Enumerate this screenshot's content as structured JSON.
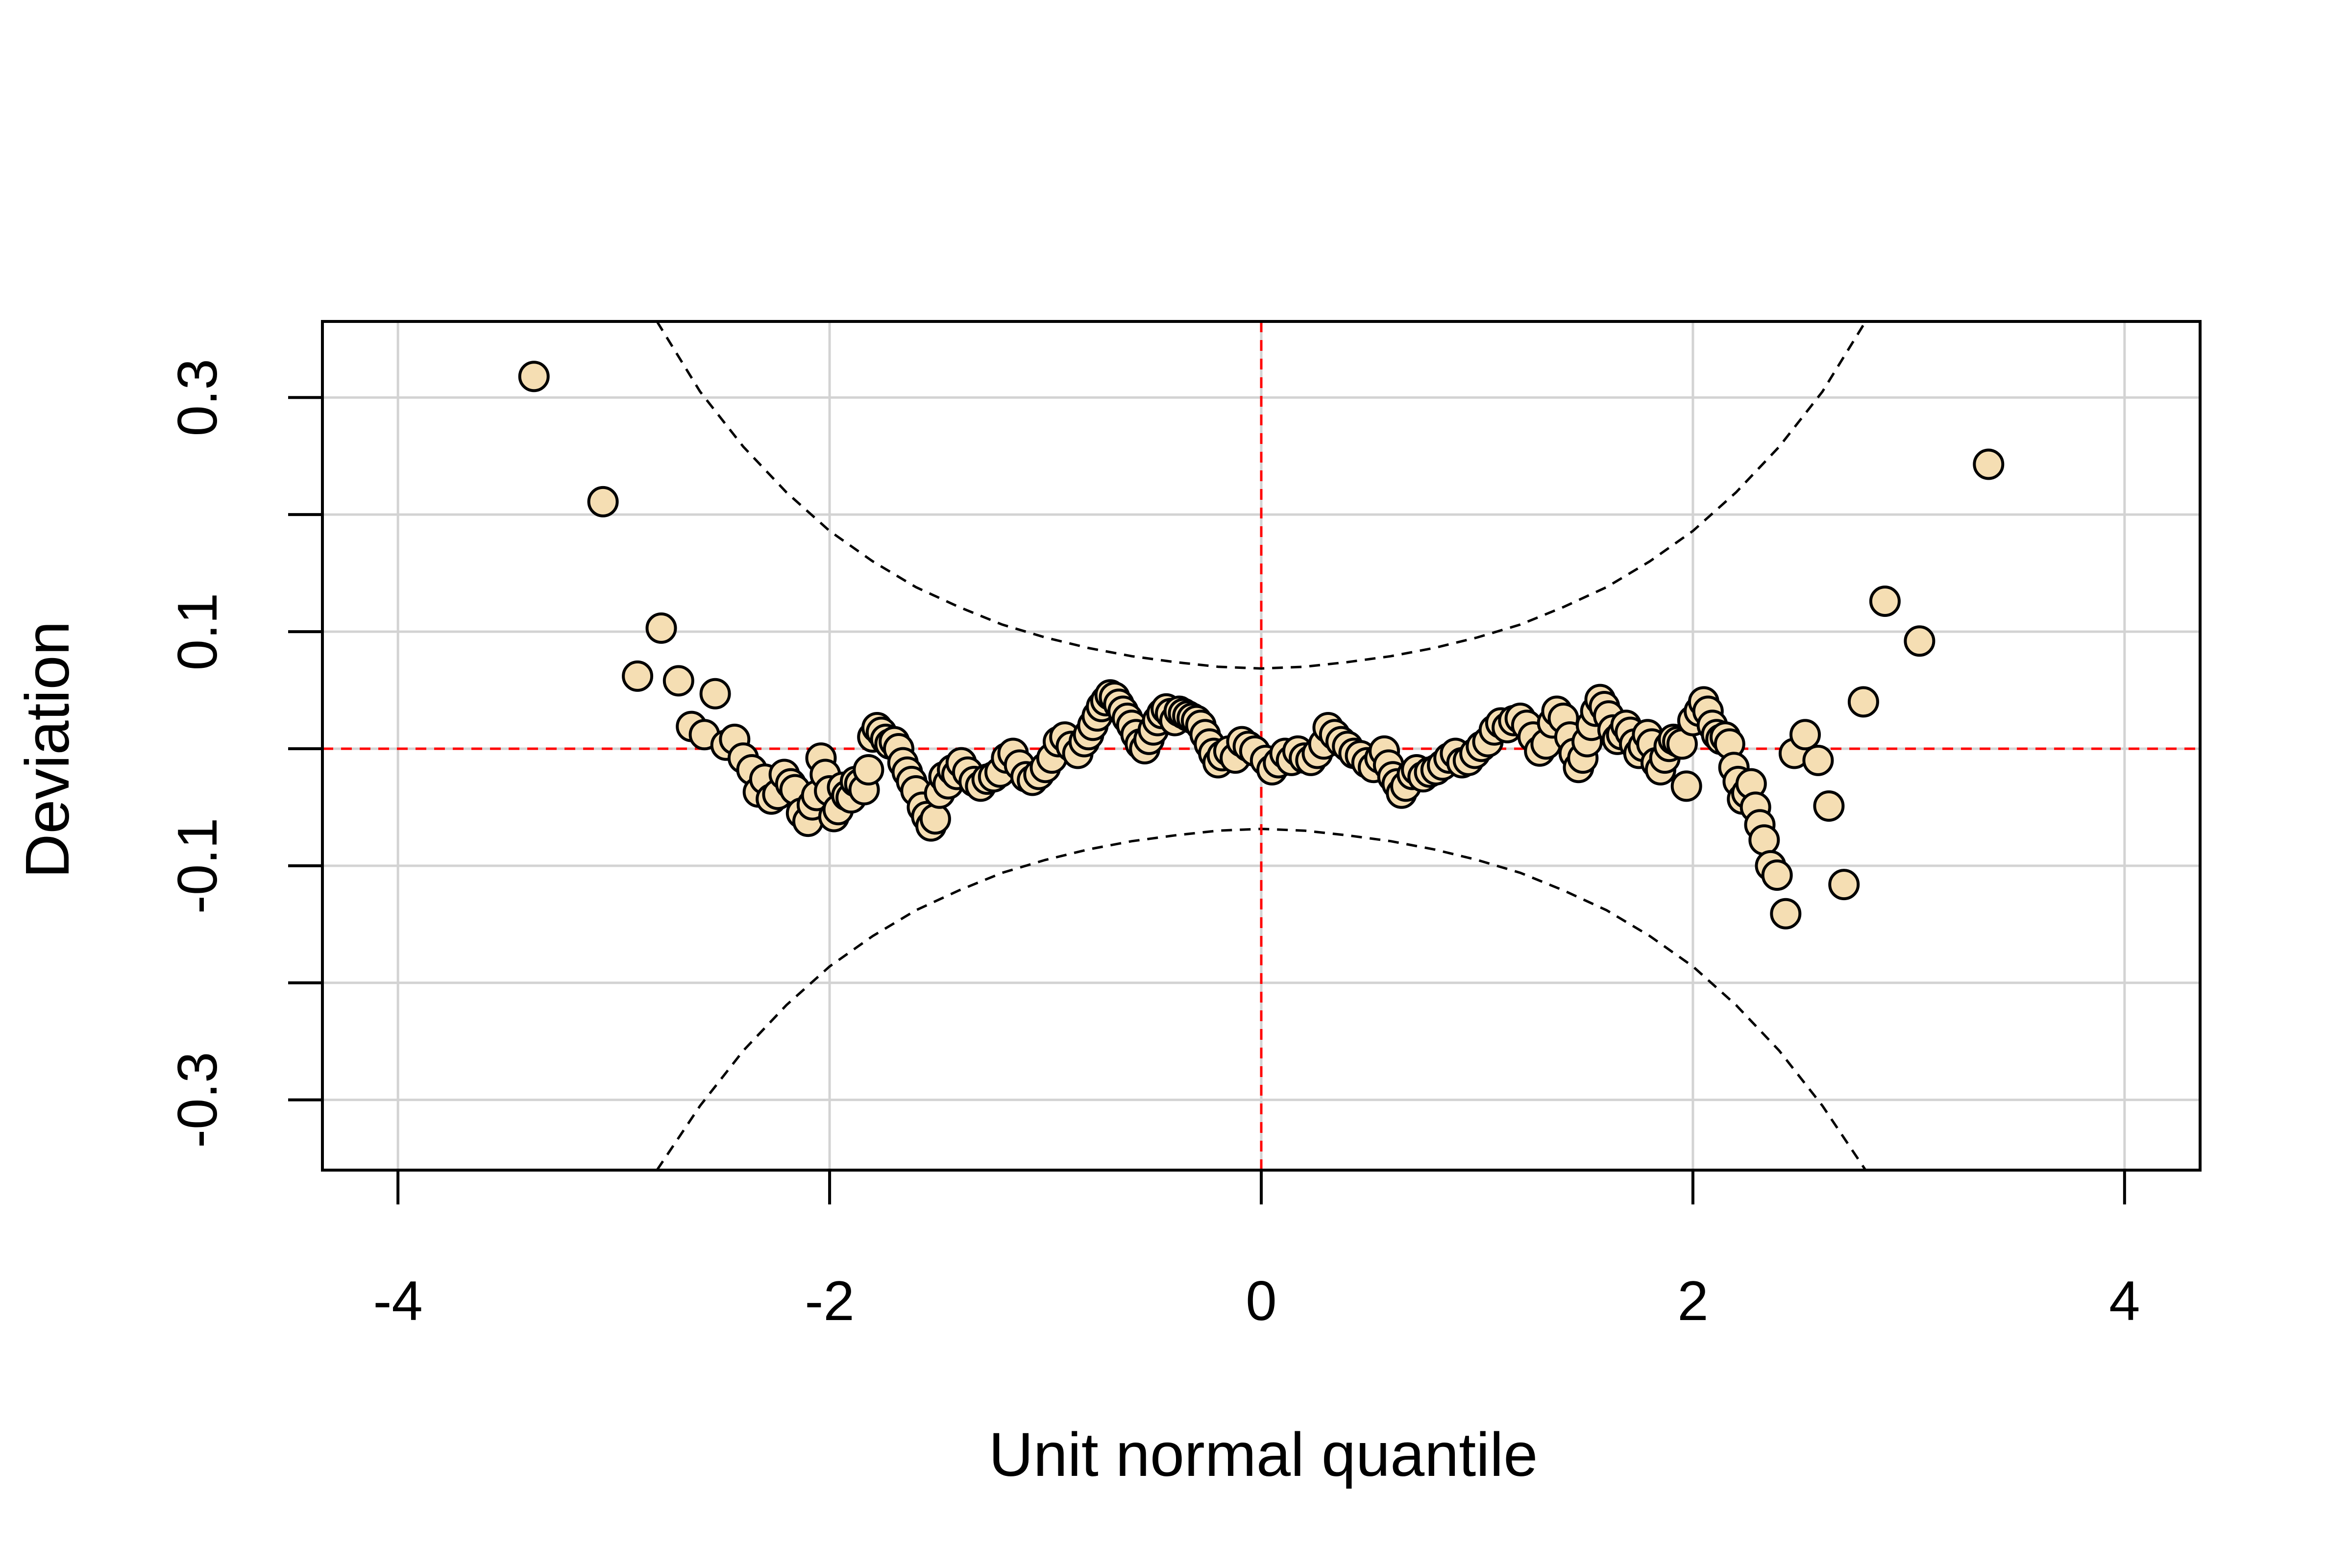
{
  "chart_data": {
    "type": "scatter",
    "title": "",
    "xlabel": "Unit normal quantile",
    "ylabel": "Deviation",
    "xlim": [
      -4.35,
      4.35
    ],
    "ylim": [
      -0.36,
      0.365
    ],
    "x_ticks": [
      -4,
      -2,
      0,
      2,
      4
    ],
    "x_tick_labels": [
      "-4",
      "-2",
      "0",
      "2",
      "4"
    ],
    "y_ticks": [
      -0.3,
      -0.2,
      -0.1,
      0,
      0.1,
      0.2,
      0.3
    ],
    "y_tick_labels": [
      "-0.3",
      "",
      "-0.1",
      "",
      "0.1",
      "",
      "0.3"
    ],
    "grid": true,
    "colors": {
      "point_fill": "#F5DEB3",
      "point_stroke": "#000000",
      "reference_line": "#FF0000",
      "confidence_band": "#000000",
      "grid": "#D3D3D3"
    },
    "points": [
      {
        "x": -3.37,
        "y": 0.318
      },
      {
        "x": -3.05,
        "y": 0.211
      },
      {
        "x": -2.89,
        "y": 0.062
      },
      {
        "x": -2.78,
        "y": 0.103
      },
      {
        "x": -2.7,
        "y": 0.058
      },
      {
        "x": -2.64,
        "y": 0.019
      },
      {
        "x": -2.58,
        "y": 0.012
      },
      {
        "x": -2.53,
        "y": 0.047
      },
      {
        "x": -2.48,
        "y": 0.003
      },
      {
        "x": -2.44,
        "y": 0.008
      },
      {
        "x": -2.4,
        "y": -0.008
      },
      {
        "x": -2.36,
        "y": -0.018
      },
      {
        "x": -2.33,
        "y": -0.037
      },
      {
        "x": -2.3,
        "y": -0.026
      },
      {
        "x": -2.27,
        "y": -0.043
      },
      {
        "x": -2.24,
        "y": -0.039
      },
      {
        "x": -2.21,
        "y": -0.022
      },
      {
        "x": -2.18,
        "y": -0.03
      },
      {
        "x": -2.16,
        "y": -0.035
      },
      {
        "x": -2.13,
        "y": -0.055
      },
      {
        "x": -2.1,
        "y": -0.062
      },
      {
        "x": -2.08,
        "y": -0.048
      },
      {
        "x": -2.06,
        "y": -0.04
      },
      {
        "x": -2.04,
        "y": -0.008
      },
      {
        "x": -2.02,
        "y": -0.022
      },
      {
        "x": -2.0,
        "y": -0.036
      },
      {
        "x": -1.98,
        "y": -0.058
      },
      {
        "x": -1.96,
        "y": -0.052
      },
      {
        "x": -1.94,
        "y": -0.033
      },
      {
        "x": -1.92,
        "y": -0.04
      },
      {
        "x": -1.9,
        "y": -0.042
      },
      {
        "x": -1.88,
        "y": -0.028
      },
      {
        "x": -1.86,
        "y": -0.03
      },
      {
        "x": -1.84,
        "y": -0.035
      },
      {
        "x": -1.82,
        "y": -0.018
      },
      {
        "x": -1.8,
        "y": 0.01
      },
      {
        "x": -1.78,
        "y": 0.018
      },
      {
        "x": -1.76,
        "y": 0.014
      },
      {
        "x": -1.74,
        "y": 0.008
      },
      {
        "x": -1.72,
        "y": 0.004
      },
      {
        "x": -1.7,
        "y": 0.006
      },
      {
        "x": -1.68,
        "y": 0.0
      },
      {
        "x": -1.66,
        "y": -0.012
      },
      {
        "x": -1.64,
        "y": -0.02
      },
      {
        "x": -1.62,
        "y": -0.028
      },
      {
        "x": -1.6,
        "y": -0.036
      },
      {
        "x": -1.57,
        "y": -0.05
      },
      {
        "x": -1.55,
        "y": -0.058
      },
      {
        "x": -1.53,
        "y": -0.066
      },
      {
        "x": -1.51,
        "y": -0.06
      },
      {
        "x": -1.49,
        "y": -0.038
      },
      {
        "x": -1.47,
        "y": -0.024
      },
      {
        "x": -1.45,
        "y": -0.03
      },
      {
        "x": -1.43,
        "y": -0.018
      },
      {
        "x": -1.41,
        "y": -0.022
      },
      {
        "x": -1.39,
        "y": -0.012
      },
      {
        "x": -1.36,
        "y": -0.02
      },
      {
        "x": -1.33,
        "y": -0.028
      },
      {
        "x": -1.3,
        "y": -0.032
      },
      {
        "x": -1.27,
        "y": -0.026
      },
      {
        "x": -1.24,
        "y": -0.024
      },
      {
        "x": -1.21,
        "y": -0.02
      },
      {
        "x": -1.18,
        "y": -0.008
      },
      {
        "x": -1.15,
        "y": -0.004
      },
      {
        "x": -1.12,
        "y": -0.014
      },
      {
        "x": -1.09,
        "y": -0.024
      },
      {
        "x": -1.06,
        "y": -0.027
      },
      {
        "x": -1.03,
        "y": -0.022
      },
      {
        "x": -1.0,
        "y": -0.016
      },
      {
        "x": -0.97,
        "y": -0.008
      },
      {
        "x": -0.94,
        "y": 0.006
      },
      {
        "x": -0.91,
        "y": 0.01
      },
      {
        "x": -0.88,
        "y": 0.002
      },
      {
        "x": -0.85,
        "y": -0.004
      },
      {
        "x": -0.82,
        "y": 0.006
      },
      {
        "x": -0.8,
        "y": 0.012
      },
      {
        "x": -0.78,
        "y": 0.02
      },
      {
        "x": -0.76,
        "y": 0.028
      },
      {
        "x": -0.74,
        "y": 0.036
      },
      {
        "x": -0.72,
        "y": 0.041
      },
      {
        "x": -0.7,
        "y": 0.046
      },
      {
        "x": -0.68,
        "y": 0.044
      },
      {
        "x": -0.66,
        "y": 0.038
      },
      {
        "x": -0.64,
        "y": 0.032
      },
      {
        "x": -0.62,
        "y": 0.026
      },
      {
        "x": -0.6,
        "y": 0.02
      },
      {
        "x": -0.58,
        "y": 0.012
      },
      {
        "x": -0.56,
        "y": 0.004
      },
      {
        "x": -0.54,
        "y": 0.0
      },
      {
        "x": -0.52,
        "y": 0.008
      },
      {
        "x": -0.5,
        "y": 0.016
      },
      {
        "x": -0.48,
        "y": 0.024
      },
      {
        "x": -0.46,
        "y": 0.03
      },
      {
        "x": -0.44,
        "y": 0.034
      },
      {
        "x": -0.42,
        "y": 0.03
      },
      {
        "x": -0.4,
        "y": 0.024
      },
      {
        "x": -0.38,
        "y": 0.032
      },
      {
        "x": -0.36,
        "y": 0.03
      },
      {
        "x": -0.34,
        "y": 0.028
      },
      {
        "x": -0.32,
        "y": 0.026
      },
      {
        "x": -0.3,
        "y": 0.024
      },
      {
        "x": -0.28,
        "y": 0.02
      },
      {
        "x": -0.26,
        "y": 0.012
      },
      {
        "x": -0.24,
        "y": 0.004
      },
      {
        "x": -0.22,
        "y": -0.004
      },
      {
        "x": -0.2,
        "y": -0.012
      },
      {
        "x": -0.18,
        "y": -0.006
      },
      {
        "x": -0.15,
        "y": -0.002
      },
      {
        "x": -0.12,
        "y": -0.008
      },
      {
        "x": -0.09,
        "y": 0.006
      },
      {
        "x": -0.06,
        "y": 0.002
      },
      {
        "x": -0.03,
        "y": -0.002
      },
      {
        "x": 0.02,
        "y": -0.01
      },
      {
        "x": 0.05,
        "y": -0.018
      },
      {
        "x": 0.08,
        "y": -0.012
      },
      {
        "x": 0.11,
        "y": -0.004
      },
      {
        "x": 0.14,
        "y": -0.01
      },
      {
        "x": 0.17,
        "y": -0.002
      },
      {
        "x": 0.2,
        "y": -0.008
      },
      {
        "x": 0.23,
        "y": -0.01
      },
      {
        "x": 0.26,
        "y": -0.004
      },
      {
        "x": 0.29,
        "y": 0.004
      },
      {
        "x": 0.31,
        "y": 0.018
      },
      {
        "x": 0.34,
        "y": 0.012
      },
      {
        "x": 0.37,
        "y": 0.006
      },
      {
        "x": 0.4,
        "y": 0.002
      },
      {
        "x": 0.43,
        "y": -0.004
      },
      {
        "x": 0.46,
        "y": -0.006
      },
      {
        "x": 0.49,
        "y": -0.012
      },
      {
        "x": 0.52,
        "y": -0.016
      },
      {
        "x": 0.55,
        "y": -0.008
      },
      {
        "x": 0.57,
        "y": -0.002
      },
      {
        "x": 0.59,
        "y": -0.014
      },
      {
        "x": 0.61,
        "y": -0.024
      },
      {
        "x": 0.63,
        "y": -0.03
      },
      {
        "x": 0.65,
        "y": -0.038
      },
      {
        "x": 0.67,
        "y": -0.032
      },
      {
        "x": 0.7,
        "y": -0.022
      },
      {
        "x": 0.72,
        "y": -0.018
      },
      {
        "x": 0.75,
        "y": -0.024
      },
      {
        "x": 0.78,
        "y": -0.02
      },
      {
        "x": 0.81,
        "y": -0.018
      },
      {
        "x": 0.84,
        "y": -0.014
      },
      {
        "x": 0.87,
        "y": -0.008
      },
      {
        "x": 0.9,
        "y": -0.004
      },
      {
        "x": 0.93,
        "y": -0.012
      },
      {
        "x": 0.96,
        "y": -0.01
      },
      {
        "x": 0.99,
        "y": -0.004
      },
      {
        "x": 1.02,
        "y": 0.002
      },
      {
        "x": 1.05,
        "y": 0.006
      },
      {
        "x": 1.08,
        "y": 0.016
      },
      {
        "x": 1.11,
        "y": 0.022
      },
      {
        "x": 1.14,
        "y": 0.018
      },
      {
        "x": 1.17,
        "y": 0.024
      },
      {
        "x": 1.2,
        "y": 0.026
      },
      {
        "x": 1.23,
        "y": 0.02
      },
      {
        "x": 1.26,
        "y": 0.01
      },
      {
        "x": 1.29,
        "y": -0.002
      },
      {
        "x": 1.32,
        "y": 0.004
      },
      {
        "x": 1.35,
        "y": 0.022
      },
      {
        "x": 1.37,
        "y": 0.032
      },
      {
        "x": 1.4,
        "y": 0.026
      },
      {
        "x": 1.43,
        "y": 0.01
      },
      {
        "x": 1.45,
        "y": -0.004
      },
      {
        "x": 1.47,
        "y": -0.016
      },
      {
        "x": 1.49,
        "y": -0.008
      },
      {
        "x": 1.51,
        "y": 0.006
      },
      {
        "x": 1.53,
        "y": 0.02
      },
      {
        "x": 1.55,
        "y": 0.032
      },
      {
        "x": 1.57,
        "y": 0.042
      },
      {
        "x": 1.59,
        "y": 0.036
      },
      {
        "x": 1.61,
        "y": 0.028
      },
      {
        "x": 1.63,
        "y": 0.016
      },
      {
        "x": 1.65,
        "y": 0.008
      },
      {
        "x": 1.67,
        "y": 0.012
      },
      {
        "x": 1.69,
        "y": 0.02
      },
      {
        "x": 1.71,
        "y": 0.014
      },
      {
        "x": 1.73,
        "y": 0.004
      },
      {
        "x": 1.75,
        "y": -0.004
      },
      {
        "x": 1.77,
        "y": 0.002
      },
      {
        "x": 1.79,
        "y": 0.012
      },
      {
        "x": 1.81,
        "y": 0.004
      },
      {
        "x": 1.83,
        "y": -0.012
      },
      {
        "x": 1.85,
        "y": -0.018
      },
      {
        "x": 1.87,
        "y": -0.008
      },
      {
        "x": 1.89,
        "y": 0.002
      },
      {
        "x": 1.91,
        "y": 0.008
      },
      {
        "x": 1.93,
        "y": 0.006
      },
      {
        "x": 1.95,
        "y": 0.004
      },
      {
        "x": 1.97,
        "y": -0.032
      },
      {
        "x": 2.0,
        "y": 0.024
      },
      {
        "x": 2.03,
        "y": 0.032
      },
      {
        "x": 2.05,
        "y": 0.04
      },
      {
        "x": 2.07,
        "y": 0.032
      },
      {
        "x": 2.09,
        "y": 0.02
      },
      {
        "x": 2.11,
        "y": 0.012
      },
      {
        "x": 2.13,
        "y": 0.008
      },
      {
        "x": 2.15,
        "y": 0.01
      },
      {
        "x": 2.17,
        "y": 0.004
      },
      {
        "x": 2.19,
        "y": -0.016
      },
      {
        "x": 2.21,
        "y": -0.028
      },
      {
        "x": 2.23,
        "y": -0.043
      },
      {
        "x": 2.25,
        "y": -0.038
      },
      {
        "x": 2.27,
        "y": -0.03
      },
      {
        "x": 2.29,
        "y": -0.05
      },
      {
        "x": 2.31,
        "y": -0.065
      },
      {
        "x": 2.33,
        "y": -0.078
      },
      {
        "x": 2.36,
        "y": -0.1
      },
      {
        "x": 2.39,
        "y": -0.108
      },
      {
        "x": 2.43,
        "y": -0.141
      },
      {
        "x": 2.47,
        "y": -0.004
      },
      {
        "x": 2.52,
        "y": 0.012
      },
      {
        "x": 2.58,
        "y": -0.01
      },
      {
        "x": 2.63,
        "y": -0.049
      },
      {
        "x": 2.7,
        "y": -0.116
      },
      {
        "x": 2.79,
        "y": 0.04
      },
      {
        "x": 2.89,
        "y": 0.126
      },
      {
        "x": 3.05,
        "y": 0.092
      },
      {
        "x": 3.37,
        "y": 0.243
      }
    ],
    "reference_lines": {
      "horizontal_y": 0,
      "vertical_x": 0
    },
    "confidence_band": {
      "center_halfwidth": 0.0685,
      "upper": [
        {
          "x": -2.8,
          "y": 0.365
        },
        {
          "x": -2.6,
          "y": 0.305
        },
        {
          "x": -2.4,
          "y": 0.258
        },
        {
          "x": -2.2,
          "y": 0.219
        },
        {
          "x": -2.0,
          "y": 0.186
        },
        {
          "x": -1.8,
          "y": 0.16
        },
        {
          "x": -1.6,
          "y": 0.138
        },
        {
          "x": -1.4,
          "y": 0.121
        },
        {
          "x": -1.2,
          "y": 0.106
        },
        {
          "x": -1.0,
          "y": 0.095
        },
        {
          "x": -0.8,
          "y": 0.086
        },
        {
          "x": -0.6,
          "y": 0.079
        },
        {
          "x": -0.4,
          "y": 0.074
        },
        {
          "x": -0.2,
          "y": 0.07
        },
        {
          "x": 0.0,
          "y": 0.0685
        },
        {
          "x": 0.2,
          "y": 0.07
        },
        {
          "x": 0.4,
          "y": 0.074
        },
        {
          "x": 0.6,
          "y": 0.079
        },
        {
          "x": 0.8,
          "y": 0.086
        },
        {
          "x": 1.0,
          "y": 0.095
        },
        {
          "x": 1.2,
          "y": 0.106
        },
        {
          "x": 1.4,
          "y": 0.121
        },
        {
          "x": 1.6,
          "y": 0.138
        },
        {
          "x": 1.8,
          "y": 0.16
        },
        {
          "x": 2.0,
          "y": 0.186
        },
        {
          "x": 2.2,
          "y": 0.219
        },
        {
          "x": 2.4,
          "y": 0.258
        },
        {
          "x": 2.6,
          "y": 0.305
        },
        {
          "x": 2.8,
          "y": 0.365
        }
      ]
    }
  }
}
